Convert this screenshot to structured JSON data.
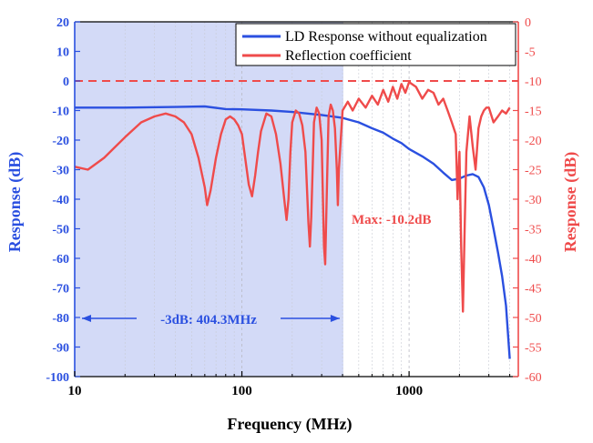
{
  "chart_data": {
    "type": "line",
    "xlabel": "Frequency (MHz)",
    "ylabel_left": "Response (dB)",
    "ylabel_right": "Response (dB)",
    "x_scale": "log",
    "xlim": [
      10,
      4500
    ],
    "ylim_left": [
      -100,
      20
    ],
    "ylim_right": [
      -60,
      0
    ],
    "x_ticks": [
      10,
      100,
      1000
    ],
    "x_tick_labels": [
      "10",
      "100",
      "1000"
    ],
    "y_left_ticks": [
      20,
      10,
      0,
      -10,
      -20,
      -30,
      -40,
      -50,
      -60,
      -70,
      -80,
      -90,
      -100
    ],
    "y_left_tick_labels": [
      "20",
      "10",
      "0",
      "-10",
      "-20",
      "-30",
      "-40",
      "-50",
      "-60",
      "-70",
      "-80",
      "-90",
      "-100"
    ],
    "y_right_ticks": [
      0,
      -5,
      -10,
      -15,
      -20,
      -25,
      -30,
      -35,
      -40,
      -45,
      -50,
      -55,
      -60
    ],
    "y_right_tick_labels": [
      "0",
      "-5",
      "-10",
      "-15",
      "-20",
      "-25",
      "-30",
      "-35",
      "-40",
      "-45",
      "-50",
      "-55",
      "-60"
    ],
    "colors": {
      "left": "#2b50e0",
      "right": "#ef4b4b",
      "shade": "#d3daf7"
    },
    "shaded_region": {
      "x_from": 10,
      "x_to": 404.3
    },
    "reference_line": {
      "axis": "right",
      "y": -10,
      "style": "dashed"
    },
    "legend": {
      "position": "top-right",
      "entries": [
        "LD Response without equalization",
        "Reflection coefficient"
      ]
    },
    "annotations": {
      "bandwidth": "-3dB: 404.3MHz",
      "max": "Max: -10.2dB"
    },
    "series": [
      {
        "name": "LD Response without equalization",
        "axis": "left",
        "color": "#2b50e0",
        "x": [
          10,
          20,
          40,
          60,
          80,
          100,
          150,
          200,
          300,
          400,
          500,
          600,
          700,
          800,
          900,
          1000,
          1200,
          1400,
          1600,
          1800,
          2000,
          2200,
          2400,
          2600,
          2800,
          3000,
          3200,
          3400,
          3600,
          3800,
          4000
        ],
        "y": [
          -9,
          -9,
          -8.8,
          -8.6,
          -9.5,
          -9.6,
          -10,
          -10.5,
          -11.5,
          -12.5,
          -14,
          -16,
          -17.5,
          -19.5,
          -21,
          -23,
          -25.5,
          -28,
          -31,
          -33.5,
          -33,
          -32,
          -31.5,
          -32.5,
          -36,
          -42,
          -50,
          -58,
          -66,
          -76,
          -94
        ]
      },
      {
        "name": "Reflection coefficient",
        "axis": "right",
        "color": "#ef4b4b",
        "x": [
          10,
          12,
          15,
          20,
          25,
          30,
          35,
          40,
          45,
          50,
          55,
          60,
          62,
          65,
          70,
          75,
          80,
          85,
          90,
          95,
          100,
          110,
          115,
          120,
          125,
          130,
          140,
          150,
          160,
          170,
          180,
          185,
          190,
          195,
          200,
          210,
          220,
          230,
          240,
          250,
          255,
          260,
          270,
          280,
          290,
          300,
          310,
          315,
          320,
          330,
          340,
          350,
          360,
          370,
          375,
          380,
          400,
          430,
          460,
          500,
          550,
          600,
          650,
          700,
          750,
          800,
          850,
          900,
          950,
          1000,
          1100,
          1200,
          1300,
          1400,
          1500,
          1600,
          1700,
          1800,
          1900,
          1950,
          2000,
          2050,
          2100,
          2150,
          2200,
          2300,
          2400,
          2500,
          2600,
          2700,
          2800,
          2900,
          3000,
          3200,
          3400,
          3600,
          3800,
          4000
        ],
        "y": [
          -24.5,
          -25,
          -23,
          -19.5,
          -17,
          -16,
          -15.5,
          -16,
          -17,
          -19,
          -23,
          -28,
          -31,
          -28.5,
          -23,
          -19,
          -16.5,
          -16,
          -16.5,
          -17.5,
          -19,
          -27.5,
          -29.5,
          -26,
          -22,
          -18.5,
          -15.5,
          -16,
          -19,
          -24,
          -30.5,
          -33.5,
          -30,
          -22,
          -17,
          -15,
          -15.5,
          -17.5,
          -22,
          -34,
          -38,
          -33,
          -17,
          -14.5,
          -15.5,
          -20,
          -38,
          -41,
          -32,
          -16,
          -14,
          -15,
          -18,
          -25,
          -31,
          -25,
          -15,
          -13.5,
          -15,
          -13,
          -14.5,
          -12.5,
          -14,
          -11.5,
          -13.5,
          -11,
          -13,
          -10.5,
          -12,
          -10.2,
          -11,
          -13,
          -11.5,
          -12,
          -14,
          -13,
          -15,
          -17,
          -19,
          -30,
          -22,
          -38,
          -49,
          -35,
          -22,
          -16,
          -21,
          -25,
          -18,
          -16,
          -15,
          -14.5,
          -14.5,
          -17,
          -16,
          -15,
          -15.5,
          -14.5
        ]
      }
    ]
  }
}
